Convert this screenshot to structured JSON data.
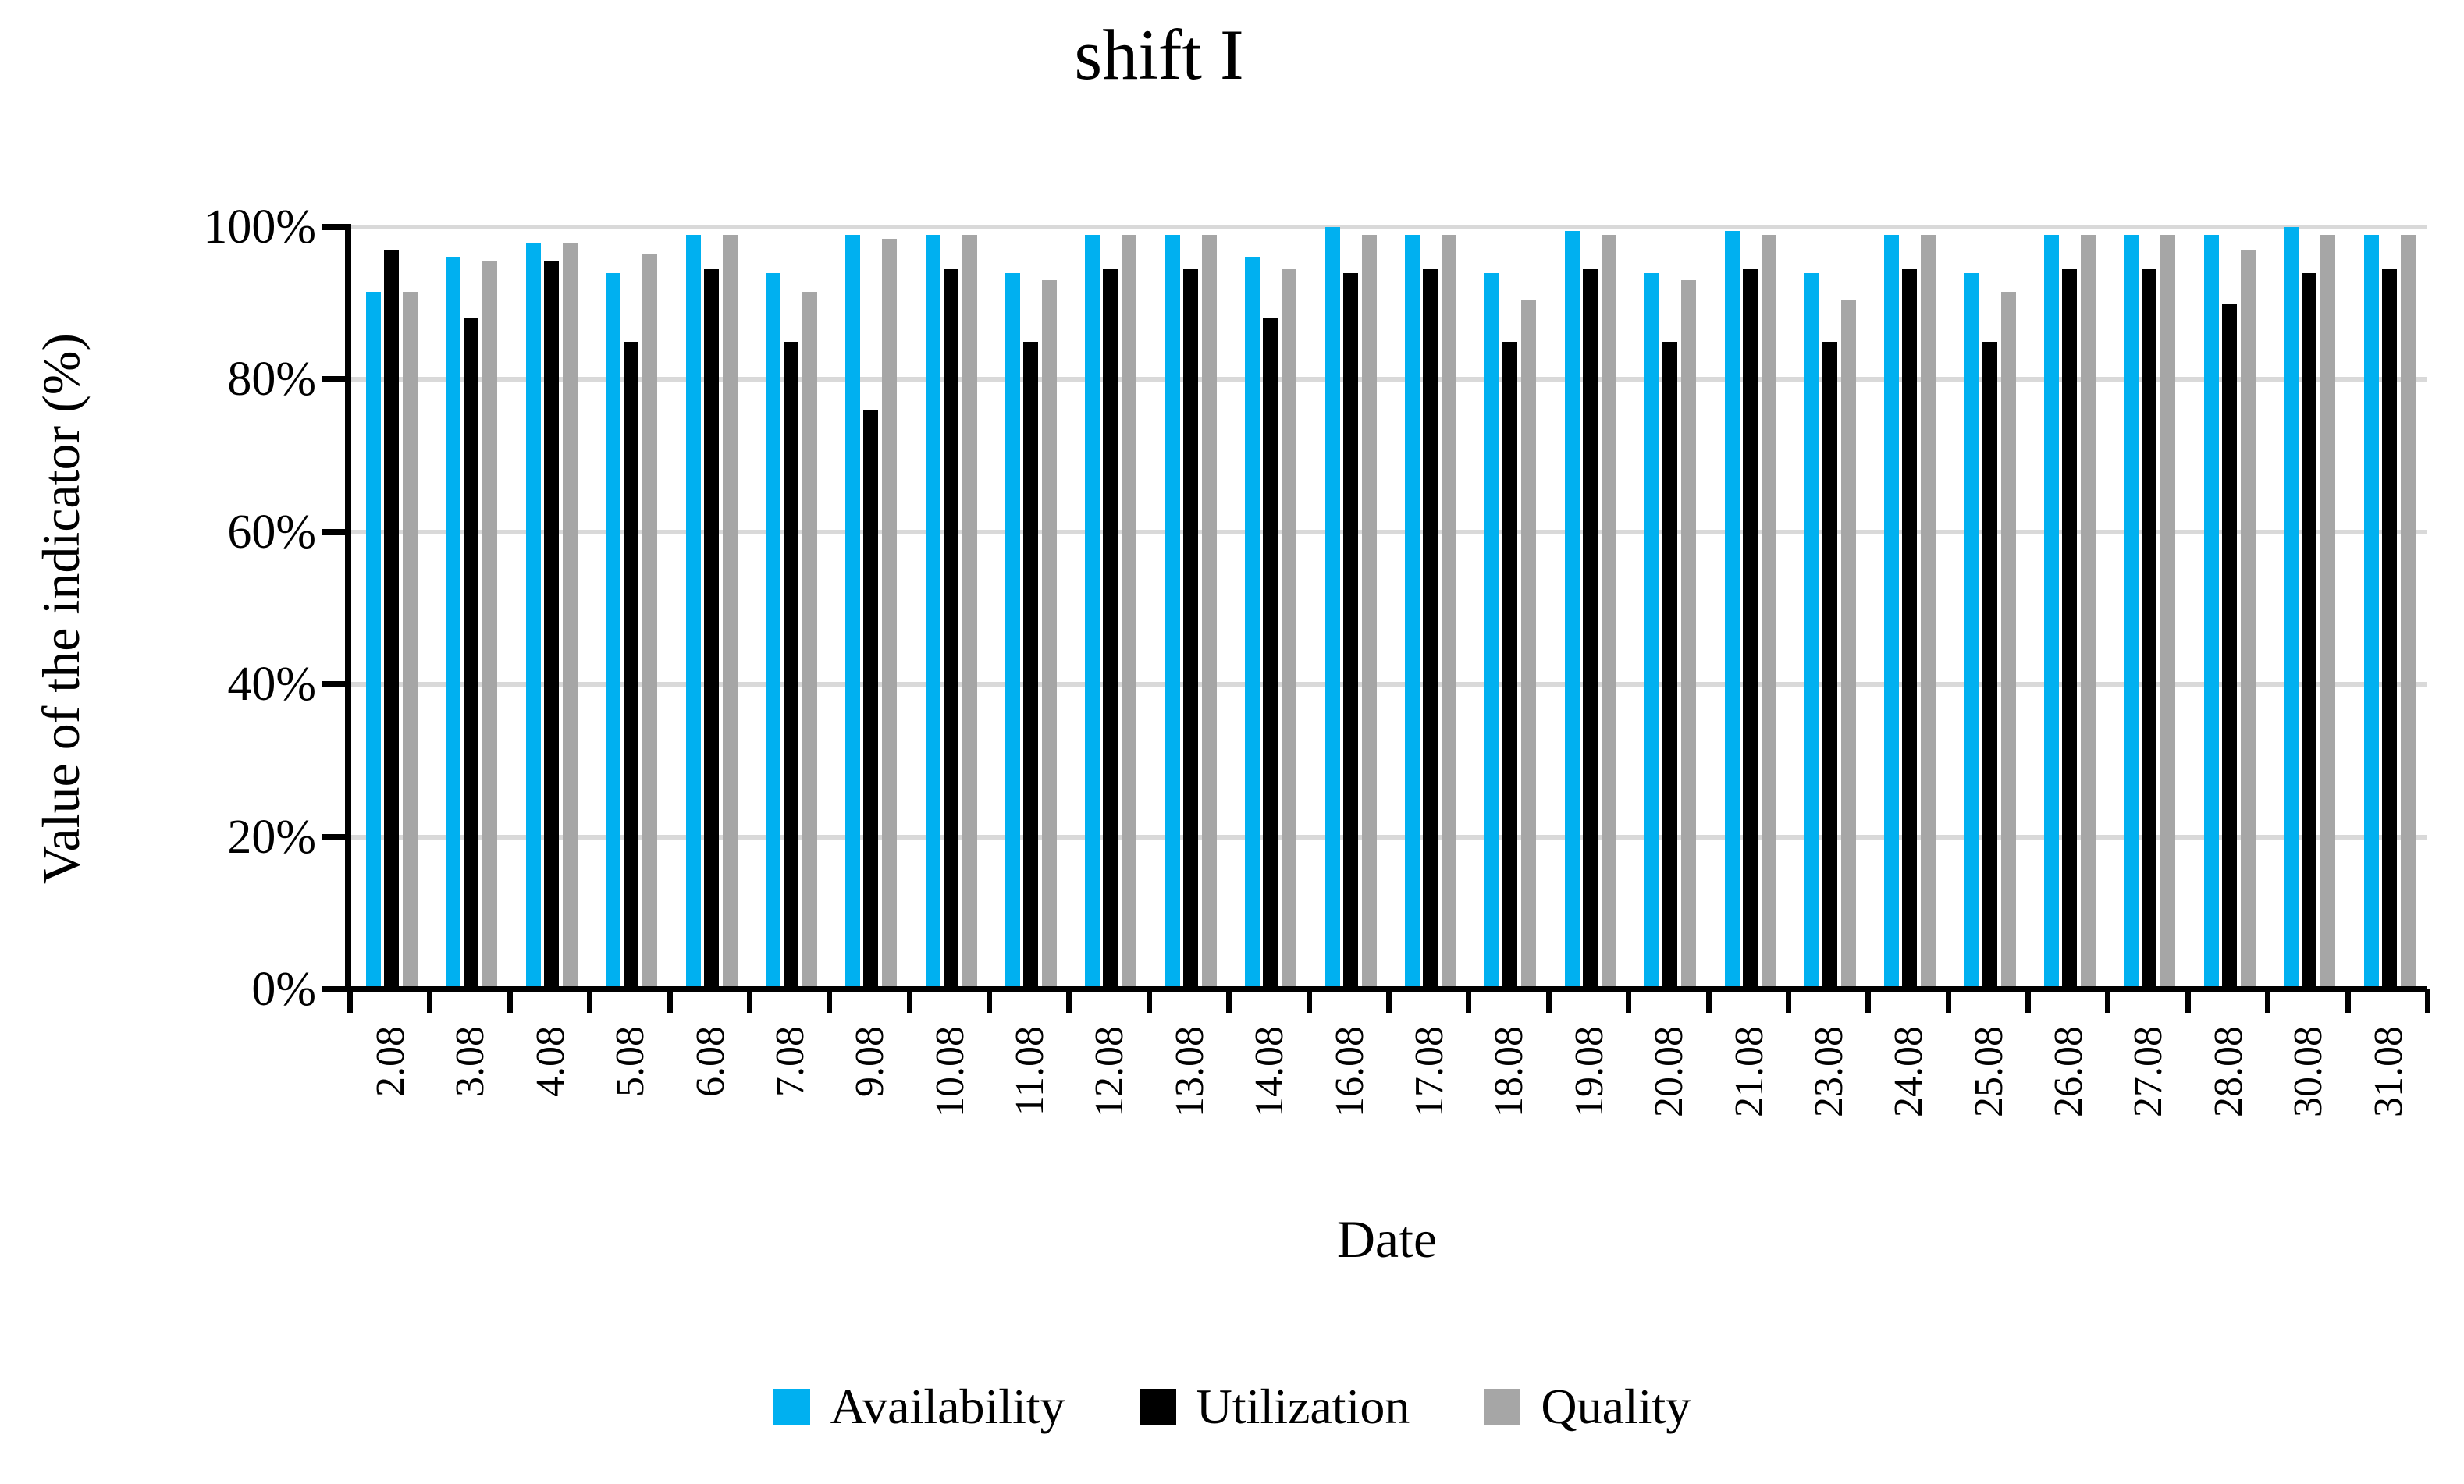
{
  "chart_data": {
    "type": "bar",
    "title": "shift I",
    "xlabel": "Date",
    "ylabel": "Value of the indicator (%)",
    "ylim": [
      0,
      100
    ],
    "y_tick_labels": [
      "100%",
      "80%",
      "60%",
      "40%",
      "20%",
      "0%"
    ],
    "y_tick_values": [
      100,
      80,
      60,
      40,
      20,
      0
    ],
    "grid": true,
    "legend_position": "bottom",
    "categories": [
      "2.08",
      "3.08",
      "4.08",
      "5.08",
      "6.08",
      "7.08",
      "9.08",
      "10.08",
      "11.08",
      "12.08",
      "13.08",
      "14.08",
      "16.08",
      "17.08",
      "18.08",
      "19.08",
      "20.08",
      "21.08",
      "23.08",
      "24.08",
      "25.08",
      "26.08",
      "27.08",
      "28.08",
      "30.08",
      "31.08"
    ],
    "series": [
      {
        "name": "Availability",
        "color": "#00B0F0",
        "values": [
          91.5,
          96,
          98,
          94,
          99,
          94,
          99,
          99,
          94,
          99,
          99,
          96,
          100,
          99,
          94,
          99.5,
          94,
          99.5,
          94,
          99,
          94,
          99,
          99,
          99,
          100,
          99
        ]
      },
      {
        "name": "Utilization",
        "color": "#000000",
        "values": [
          97,
          88,
          95.5,
          85,
          94.5,
          85,
          76,
          94.5,
          85,
          94.5,
          94.5,
          88,
          94,
          94.5,
          85,
          94.5,
          85,
          94.5,
          85,
          94.5,
          85,
          94.5,
          94.5,
          90,
          94,
          94.5
        ]
      },
      {
        "name": "Quality",
        "color": "#A6A6A6",
        "values": [
          91.5,
          95.5,
          98,
          96.5,
          99,
          91.5,
          98.5,
          99,
          93,
          99,
          99,
          94.5,
          99,
          99,
          90.5,
          99,
          93,
          99,
          90.5,
          99,
          91.5,
          99,
          99,
          97,
          99,
          99
        ]
      }
    ],
    "gridline_color": "#D9D9D9",
    "axis_color": "#000000",
    "background_color": "#FFFFFF"
  }
}
